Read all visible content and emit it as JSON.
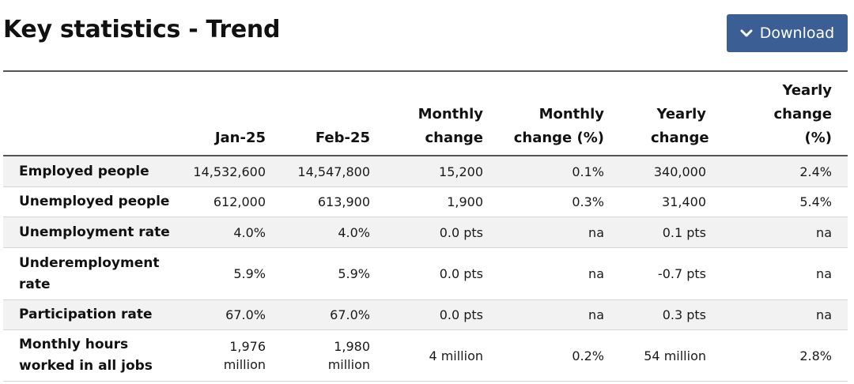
{
  "page": {
    "title": "Key statistics - Trend",
    "download_label": "Download",
    "download_icon": "chevron-down-icon"
  },
  "table": {
    "headers": [
      "",
      "Jan-25",
      "Feb-25",
      "Monthly change",
      "Monthly change (%)",
      "Yearly change",
      "Yearly change (%)"
    ],
    "rows": [
      {
        "label": "Employed people",
        "cells": [
          "14,532,600",
          "14,547,800",
          "15,200",
          "0.1%",
          "340,000",
          "2.4%"
        ]
      },
      {
        "label": "Unemployed people",
        "cells": [
          "612,000",
          "613,900",
          "1,900",
          "0.3%",
          "31,400",
          "5.4%"
        ]
      },
      {
        "label": "Unemployment rate",
        "cells": [
          "4.0%",
          "4.0%",
          "0.0 pts",
          "na",
          "0.1 pts",
          "na"
        ]
      },
      {
        "label": "Underemployment rate",
        "cells": [
          "5.9%",
          "5.9%",
          "0.0 pts",
          "na",
          "-0.7 pts",
          "na"
        ]
      },
      {
        "label": "Participation rate",
        "cells": [
          "67.0%",
          "67.0%",
          "0.0 pts",
          "na",
          "0.3 pts",
          "na"
        ]
      },
      {
        "label": "Monthly hours worked in all jobs",
        "cells": [
          "1,976 million",
          "1,980 million",
          "4 million",
          "0.2%",
          "54 million",
          "2.8%"
        ]
      }
    ]
  },
  "colors": {
    "button": "#3b5f95",
    "row_shade": "#f2f2f2"
  }
}
